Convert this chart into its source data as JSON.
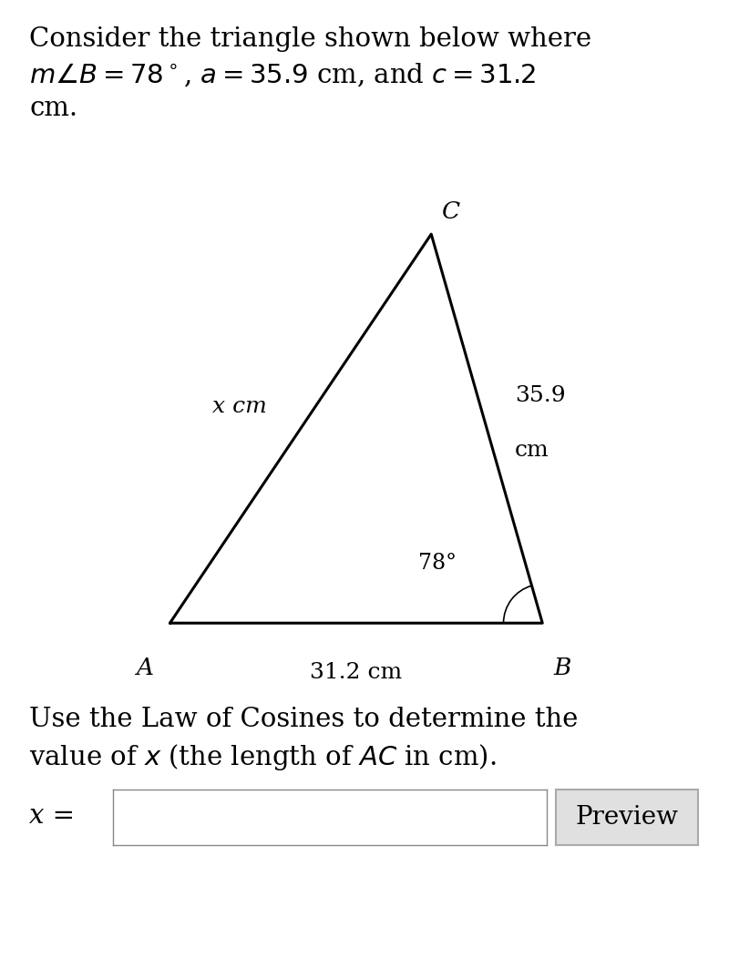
{
  "title_line1": "Consider the triangle shown below where",
  "title_line2": "$m\\angle B = 78^\\circ$, $a = 35.9$ cm, and $c = 31.2$",
  "title_line3": "cm.",
  "instruction_line1": "Use the Law of Cosines to determine the",
  "instruction_line2": "value of $x$ (the length of $AC$ in cm).",
  "input_label": "x =",
  "preview_label": "Preview",
  "vertex_A": [
    0.15,
    0.12
  ],
  "vertex_B": [
    0.82,
    0.12
  ],
  "vertex_C": [
    0.62,
    0.82
  ],
  "label_A": "A",
  "label_B": "B",
  "label_C": "C",
  "side_AB_label": "31.2 cm",
  "side_BC_label_1": "35.9",
  "side_BC_label_2": "cm",
  "side_AC_label": "x cm",
  "angle_B_label": "78°",
  "bg_color": "#ffffff",
  "text_color": "#000000",
  "line_color": "#000000",
  "line_width": 2.2,
  "title_fontsize": 21,
  "label_fontsize": 19,
  "side_label_fontsize": 18,
  "instruction_fontsize": 21,
  "input_fontsize": 21,
  "preview_fontsize": 20
}
